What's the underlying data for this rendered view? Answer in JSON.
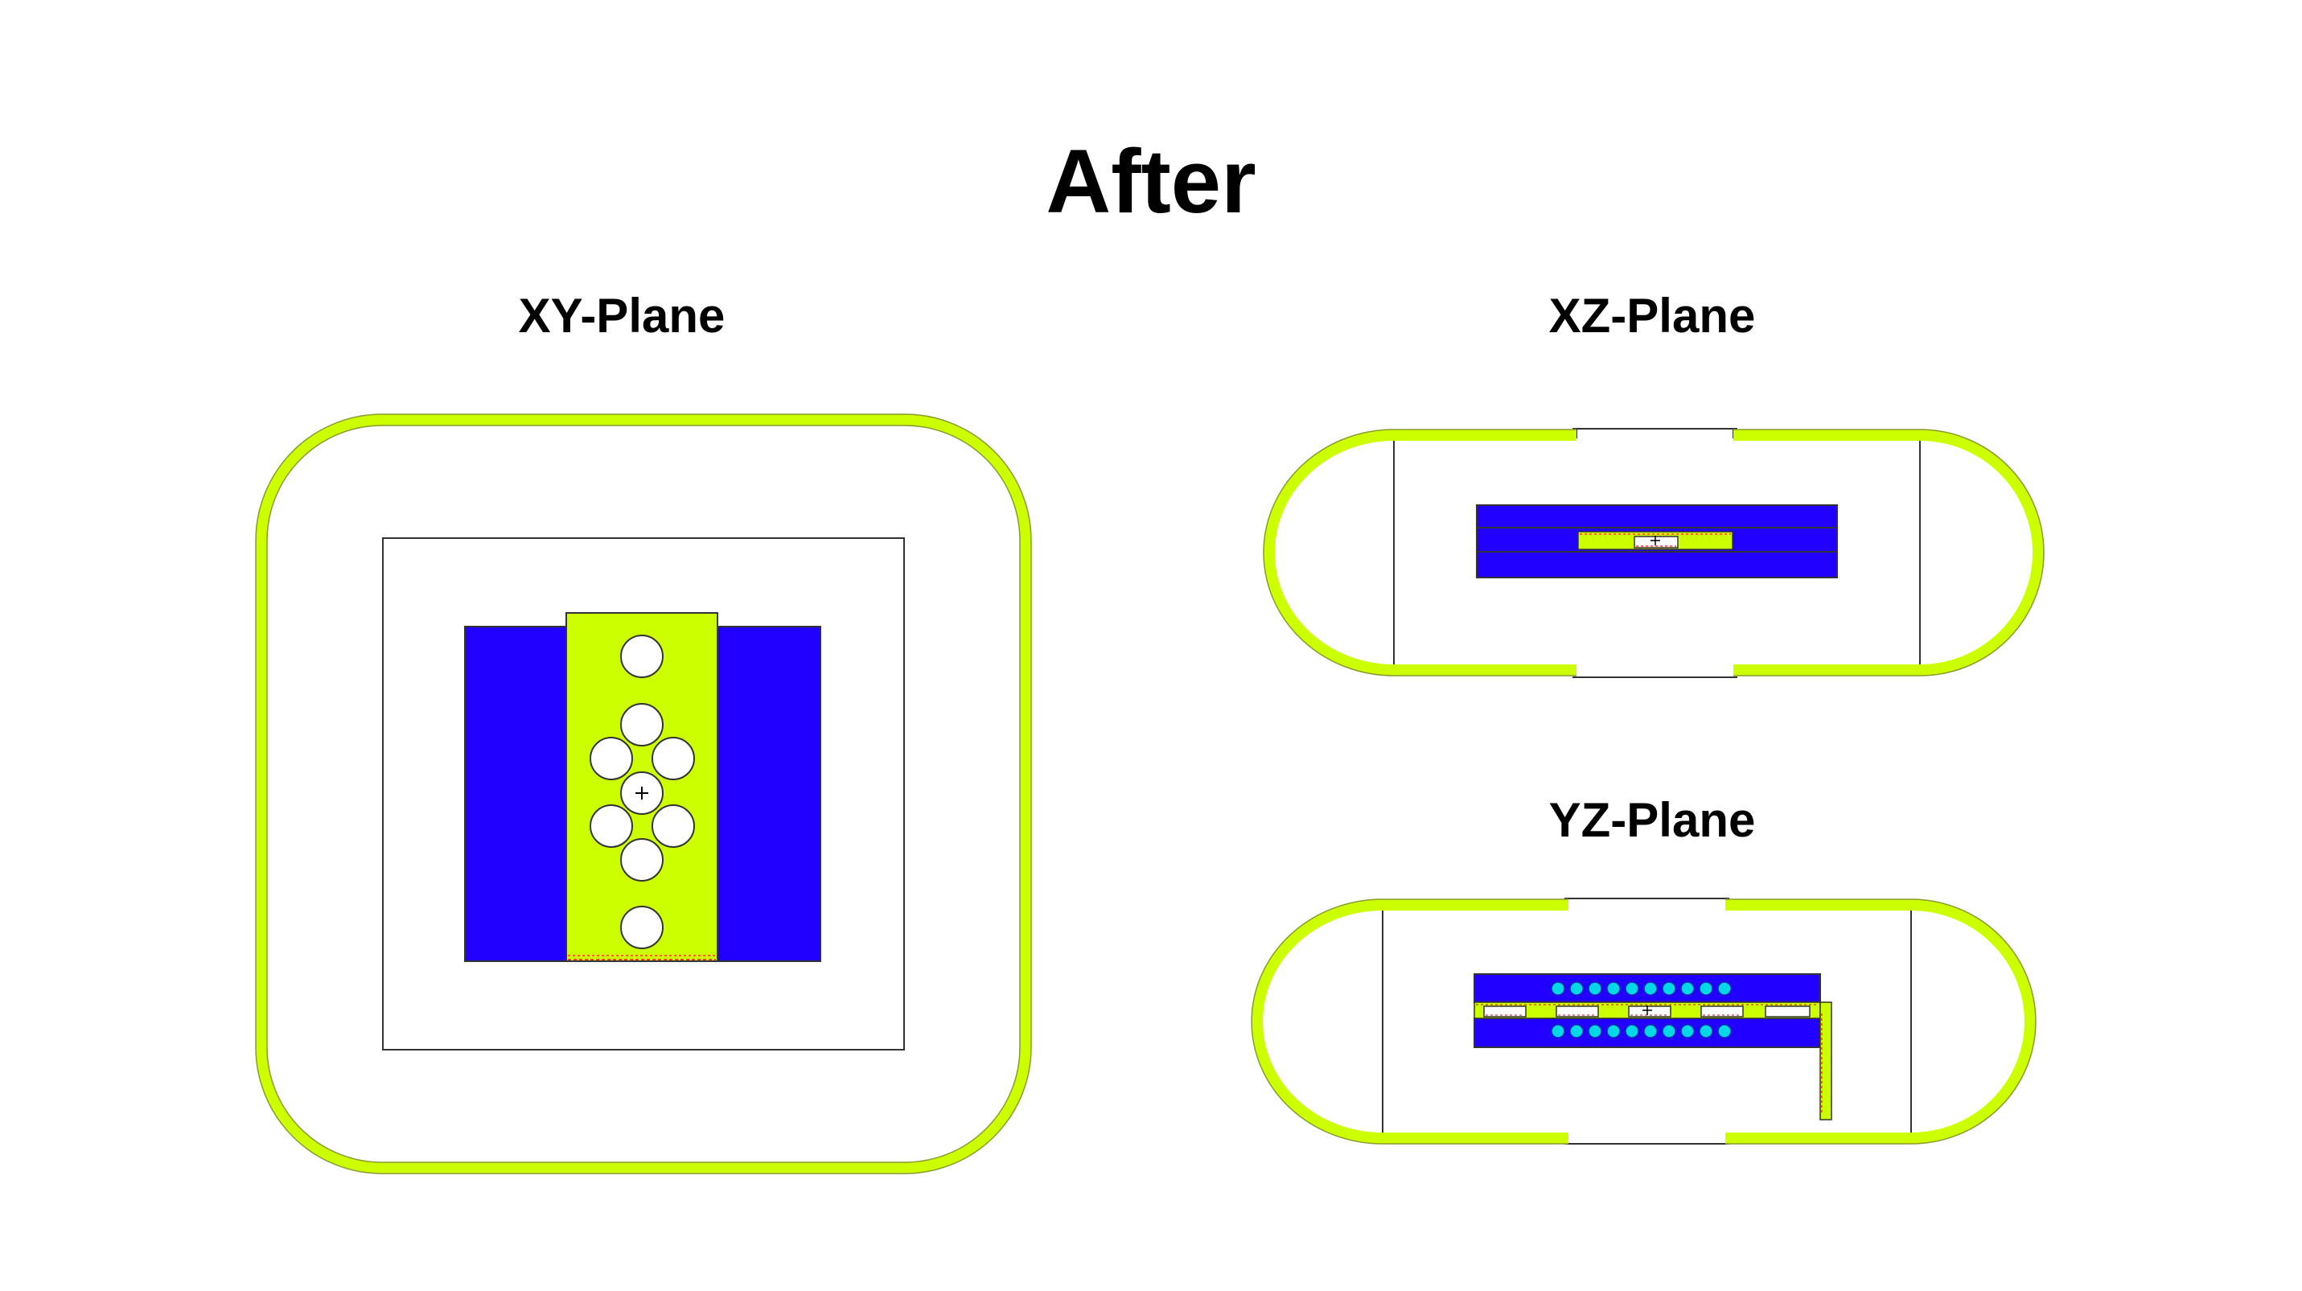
{
  "title": "After",
  "panels": {
    "xy": {
      "label": "XY-Plane"
    },
    "xz": {
      "label": "XZ-Plane"
    },
    "yz": {
      "label": "YZ-Plane"
    }
  },
  "colors": {
    "shell": "#ccff00",
    "shell_outline": "#888888",
    "magnet": "#2200ff",
    "hole": "#ffffff",
    "coil_dot": "#00d8e8",
    "dashed_marker": "#ff3333",
    "frame_line": "#333333"
  },
  "icons": {
    "center_marker": "crosshair-icon"
  }
}
